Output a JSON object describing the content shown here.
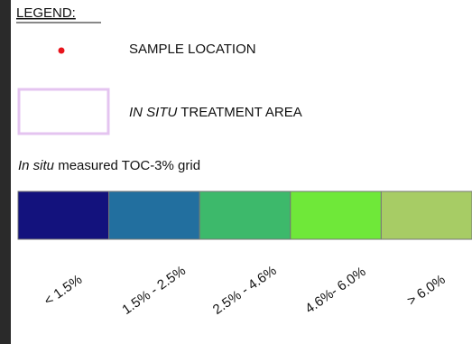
{
  "legend": {
    "title": "LEGEND:",
    "sample_location": {
      "label": "SAMPLE LOCATION",
      "color": "#e8141c"
    },
    "treatment_area": {
      "emphasis": "IN SITU",
      "rest": " TREATMENT AREA",
      "color": "#e4c4f0"
    },
    "grid": {
      "emphasis": "In situ",
      "rest": " measured TOC-3% grid",
      "classes": [
        {
          "label": "< 1.5%",
          "color": "#13127d"
        },
        {
          "label": "1.5% - 2.5%",
          "color": "#226f9f"
        },
        {
          "label": "2.5% - 4.6%",
          "color": "#3db96b"
        },
        {
          "label": "4.6%- 6.0%",
          "color": "#6fe839"
        },
        {
          "label": "> 6.0%",
          "color": "#a7cc65"
        }
      ]
    }
  }
}
